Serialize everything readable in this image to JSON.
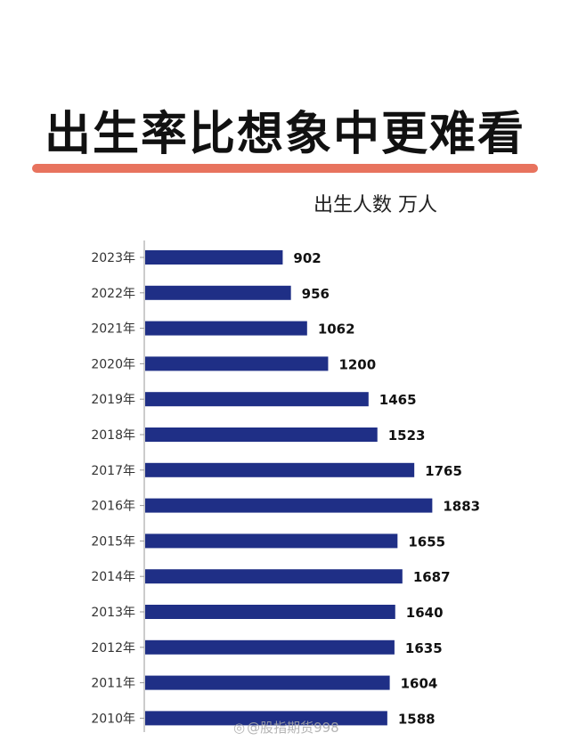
{
  "title": "出生率比想象中更难看",
  "subtitle": "出生人数 万人",
  "watermark": "@股指期货998",
  "colors": {
    "bar": "#1f2f86",
    "accent_underline": "#e8735e",
    "axis": "#999999"
  },
  "chart_data": {
    "type": "bar",
    "orientation": "horizontal",
    "categories": [
      "2023年",
      "2022年",
      "2021年",
      "2020年",
      "2019年",
      "2018年",
      "2017年",
      "2016年",
      "2015年",
      "2014年",
      "2013年",
      "2012年",
      "2011年",
      "2010年"
    ],
    "values": [
      902,
      956,
      1062,
      1200,
      1465,
      1523,
      1765,
      1883,
      1655,
      1687,
      1640,
      1635,
      1604,
      1588
    ],
    "title": "出生率比想象中更难看",
    "subtitle": "出生人数 万人",
    "xlim": [
      0,
      2000
    ],
    "grid": false,
    "legend": "none"
  }
}
